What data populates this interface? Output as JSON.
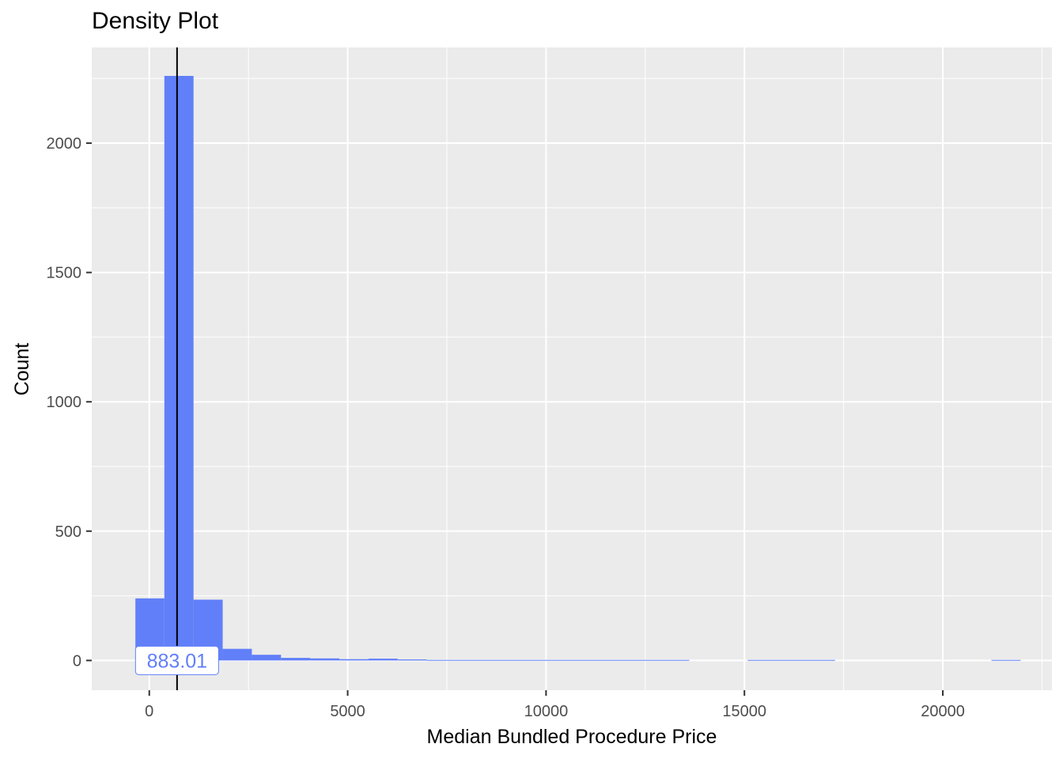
{
  "chart_data": {
    "type": "bar",
    "title": "Density Plot",
    "xlabel": "Median Bundled Procedure Price",
    "ylabel": "Count",
    "xlim": [
      -1450,
      22750
    ],
    "ylim": [
      -115,
      2370
    ],
    "x_ticks": [
      0,
      5000,
      10000,
      15000,
      20000
    ],
    "x_tick_labels": [
      "0",
      "5000",
      "10000",
      "15000",
      "20000"
    ],
    "y_ticks": [
      0,
      500,
      1000,
      1500,
      2000
    ],
    "y_tick_labels": [
      "0",
      "500",
      "1000",
      "1500",
      "2000"
    ],
    "grid": true,
    "legend": "none",
    "bins": [
      {
        "x0": -350,
        "x1": 380,
        "count": 240
      },
      {
        "x0": 380,
        "x1": 1115,
        "count": 2260
      },
      {
        "x0": 1115,
        "x1": 1850,
        "count": 235
      },
      {
        "x0": 1850,
        "x1": 2585,
        "count": 45
      },
      {
        "x0": 2585,
        "x1": 3320,
        "count": 22
      },
      {
        "x0": 3320,
        "x1": 4055,
        "count": 10
      },
      {
        "x0": 4055,
        "x1": 4790,
        "count": 8
      },
      {
        "x0": 4790,
        "x1": 5525,
        "count": 5
      },
      {
        "x0": 5525,
        "x1": 6260,
        "count": 7
      },
      {
        "x0": 6260,
        "x1": 6995,
        "count": 4
      },
      {
        "x0": 6995,
        "x1": 7730,
        "count": 2
      },
      {
        "x0": 7730,
        "x1": 8465,
        "count": 2
      },
      {
        "x0": 8465,
        "x1": 9200,
        "count": 2
      },
      {
        "x0": 9200,
        "x1": 9935,
        "count": 2
      },
      {
        "x0": 9935,
        "x1": 10670,
        "count": 2
      },
      {
        "x0": 10670,
        "x1": 11405,
        "count": 2
      },
      {
        "x0": 11405,
        "x1": 12140,
        "count": 2
      },
      {
        "x0": 12140,
        "x1": 12875,
        "count": 2
      },
      {
        "x0": 12875,
        "x1": 13610,
        "count": 2
      },
      {
        "x0": 15080,
        "x1": 15815,
        "count": 2
      },
      {
        "x0": 15815,
        "x1": 16550,
        "count": 2
      },
      {
        "x0": 16550,
        "x1": 17285,
        "count": 2
      },
      {
        "x0": 21225,
        "x1": 21960,
        "count": 2
      }
    ],
    "bar_color": "#617ff8",
    "vline_x": 700,
    "annotation": {
      "text": "883.01",
      "x": 700,
      "y": 0,
      "color": "#617ff8"
    }
  }
}
